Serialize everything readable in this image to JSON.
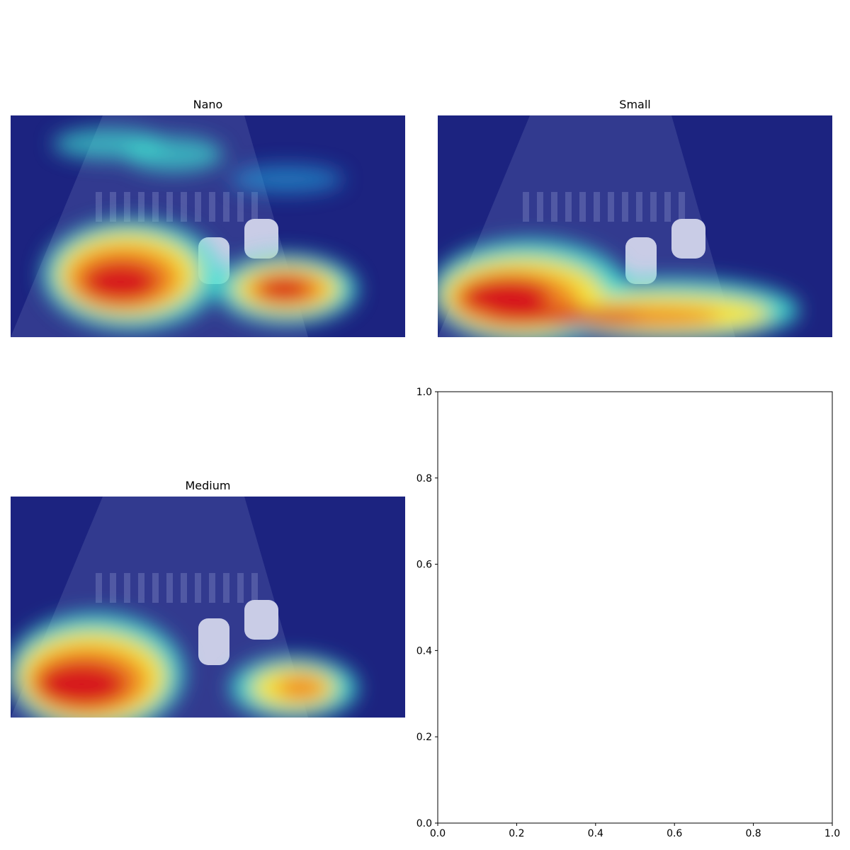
{
  "panels": [
    {
      "title": "Nano"
    },
    {
      "title": "Small"
    },
    {
      "title": "Medium"
    }
  ],
  "chart_data": [
    {
      "type": "heatmap",
      "title": "Nano",
      "colormap": "jet",
      "hotspots": [
        "lower-left",
        "lower-center-right"
      ]
    },
    {
      "type": "heatmap",
      "title": "Small",
      "colormap": "jet",
      "hotspots": [
        "lower-left",
        "bottom band"
      ]
    },
    {
      "type": "heatmap",
      "title": "Medium",
      "colormap": "jet",
      "hotspots": [
        "lower-left",
        "lower-center-right"
      ]
    },
    {
      "type": "scatter",
      "title": "",
      "xlabel": "",
      "ylabel": "",
      "xlim": [
        0.0,
        1.0
      ],
      "ylim": [
        0.0,
        1.0
      ],
      "xticks": [
        "0.0",
        "0.2",
        "0.4",
        "0.6",
        "0.8",
        "1.0"
      ],
      "yticks": [
        "0.0",
        "0.2",
        "0.4",
        "0.6",
        "0.8",
        "1.0"
      ],
      "series": []
    }
  ],
  "colors": {
    "jet_red": "#d7191c",
    "jet_yellow": "#f5e63c",
    "jet_cyan": "#40e0d0",
    "dark_blue": "#141a78"
  }
}
